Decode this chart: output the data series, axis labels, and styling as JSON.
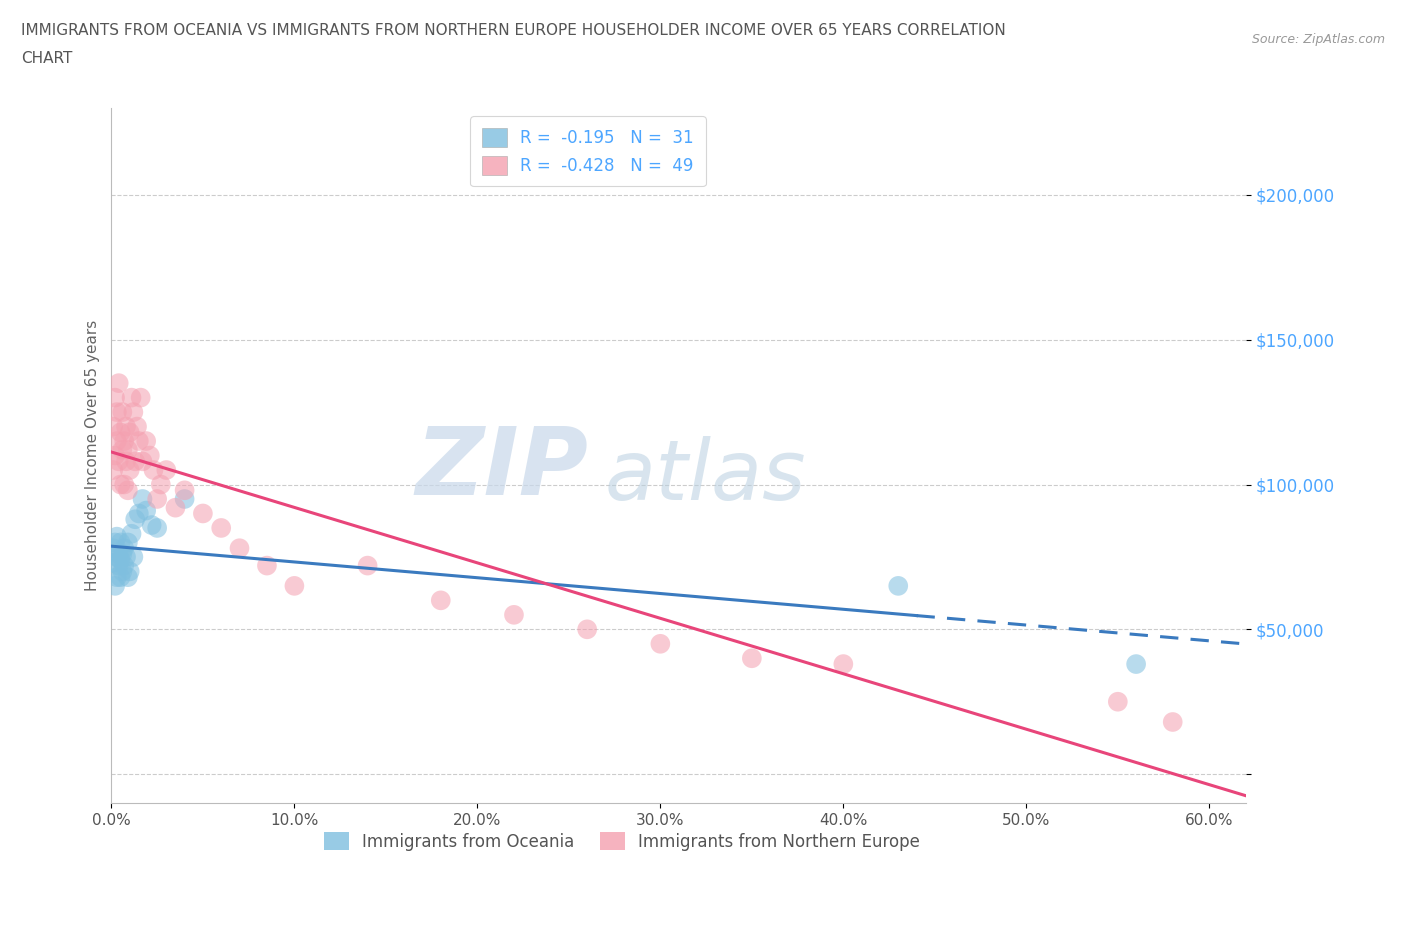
{
  "title_line1": "IMMIGRANTS FROM OCEANIA VS IMMIGRANTS FROM NORTHERN EUROPE HOUSEHOLDER INCOME OVER 65 YEARS CORRELATION",
  "title_line2": "CHART",
  "source": "Source: ZipAtlas.com",
  "ylabel": "Householder Income Over 65 years",
  "xlim": [
    0.0,
    0.62
  ],
  "ylim": [
    -10000,
    230000
  ],
  "yticks": [
    0,
    50000,
    100000,
    150000,
    200000
  ],
  "ytick_labels": [
    "",
    "$50,000",
    "$100,000",
    "$150,000",
    "$200,000"
  ],
  "xticks": [
    0.0,
    0.1,
    0.2,
    0.3,
    0.4,
    0.5,
    0.6
  ],
  "xtick_labels": [
    "0.0%",
    "10.0%",
    "20.0%",
    "30.0%",
    "40.0%",
    "50.0%",
    "60.0%"
  ],
  "oceania_x": [
    0.001,
    0.001,
    0.002,
    0.002,
    0.003,
    0.003,
    0.003,
    0.004,
    0.004,
    0.005,
    0.005,
    0.005,
    0.006,
    0.006,
    0.007,
    0.007,
    0.008,
    0.009,
    0.009,
    0.01,
    0.011,
    0.012,
    0.013,
    0.015,
    0.017,
    0.019,
    0.022,
    0.025,
    0.04,
    0.43,
    0.56
  ],
  "oceania_y": [
    73000,
    78000,
    65000,
    80000,
    68000,
    75000,
    82000,
    72000,
    76000,
    68000,
    74000,
    80000,
    70000,
    76000,
    72000,
    78000,
    75000,
    68000,
    80000,
    70000,
    83000,
    75000,
    88000,
    90000,
    95000,
    91000,
    86000,
    85000,
    95000,
    65000,
    38000
  ],
  "northern_x": [
    0.001,
    0.001,
    0.002,
    0.002,
    0.003,
    0.003,
    0.004,
    0.004,
    0.005,
    0.005,
    0.006,
    0.006,
    0.007,
    0.007,
    0.008,
    0.008,
    0.009,
    0.009,
    0.01,
    0.01,
    0.011,
    0.012,
    0.013,
    0.014,
    0.015,
    0.016,
    0.017,
    0.019,
    0.021,
    0.023,
    0.025,
    0.027,
    0.03,
    0.035,
    0.04,
    0.05,
    0.06,
    0.07,
    0.085,
    0.1,
    0.14,
    0.18,
    0.22,
    0.26,
    0.3,
    0.35,
    0.4,
    0.55,
    0.58
  ],
  "northern_y": [
    105000,
    120000,
    110000,
    130000,
    125000,
    115000,
    108000,
    135000,
    100000,
    118000,
    112000,
    125000,
    100000,
    115000,
    108000,
    120000,
    98000,
    112000,
    105000,
    118000,
    130000,
    125000,
    108000,
    120000,
    115000,
    130000,
    108000,
    115000,
    110000,
    105000,
    95000,
    100000,
    105000,
    92000,
    98000,
    90000,
    85000,
    78000,
    72000,
    65000,
    72000,
    60000,
    55000,
    50000,
    45000,
    40000,
    38000,
    25000,
    18000
  ],
  "oceania_color": "#7fbfdf",
  "northern_color": "#f4a0b0",
  "oceania_line_color": "#3a7abf",
  "northern_line_color": "#e8457a",
  "R_oceania": -0.195,
  "N_oceania": 31,
  "R_northern": -0.428,
  "N_northern": 49,
  "oceania_line_x_solid_end": 0.44,
  "watermark_zip": "ZIP",
  "watermark_atlas": "atlas",
  "background_color": "#ffffff",
  "grid_color": "#cccccc",
  "legend_text_color": "#4da6ff",
  "ytick_color": "#4da6ff",
  "source_color": "#999999"
}
